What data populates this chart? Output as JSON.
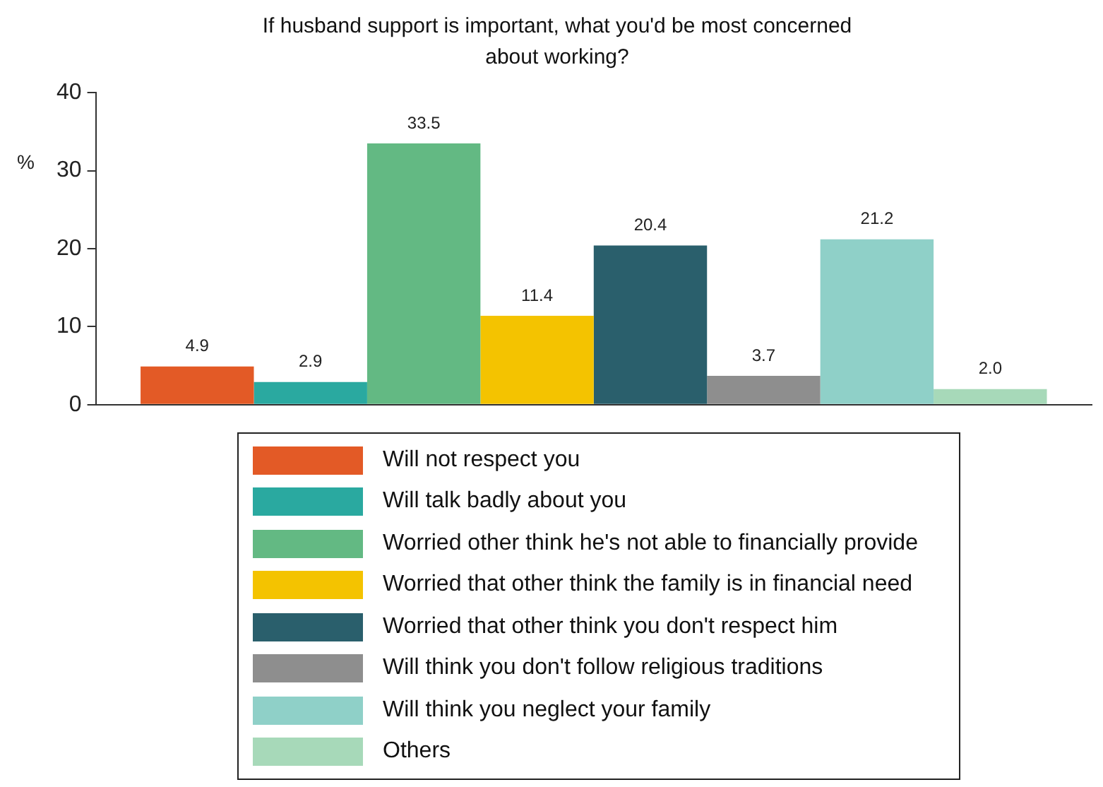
{
  "chart_data": {
    "type": "bar",
    "title": "If husband support is important, what you'd be most concerned about working?",
    "ylabel": "%",
    "categories": [
      null
    ],
    "ylim": [
      0,
      40
    ],
    "yticks": [
      0,
      10,
      20,
      30,
      40
    ],
    "grid": false,
    "legend": "bottom",
    "series": [
      {
        "name": "Will not respect you",
        "color": "#e35a26",
        "values": [
          4.9
        ],
        "value_labels": [
          "4.9"
        ]
      },
      {
        "name": "Will talk badly about you",
        "color": "#2aa9a0",
        "values": [
          2.9
        ],
        "value_labels": [
          "2.9"
        ]
      },
      {
        "name": "Worried other think he's not able to financially provide",
        "color": "#63b983",
        "values": [
          33.5
        ],
        "value_labels": [
          "33.5"
        ]
      },
      {
        "name": "Worried that other think the family is in financial need",
        "color": "#f4c300",
        "values": [
          11.4
        ],
        "value_labels": [
          "11.4"
        ]
      },
      {
        "name": "Worried that other think you don't respect him",
        "color": "#2a5f6c",
        "values": [
          20.4
        ],
        "value_labels": [
          "20.4"
        ]
      },
      {
        "name": "Will think you don't follow religious traditions",
        "color": "#8e8e8e",
        "values": [
          3.7
        ],
        "value_labels": [
          "3.7"
        ]
      },
      {
        "name": "Will think you neglect your family",
        "color": "#8fd0c8",
        "values": [
          21.2
        ],
        "value_labels": [
          "21.2"
        ]
      },
      {
        "name": "Others",
        "color": "#a7d9b9",
        "values": [
          2.0
        ],
        "value_labels": [
          "2.0"
        ]
      }
    ]
  }
}
